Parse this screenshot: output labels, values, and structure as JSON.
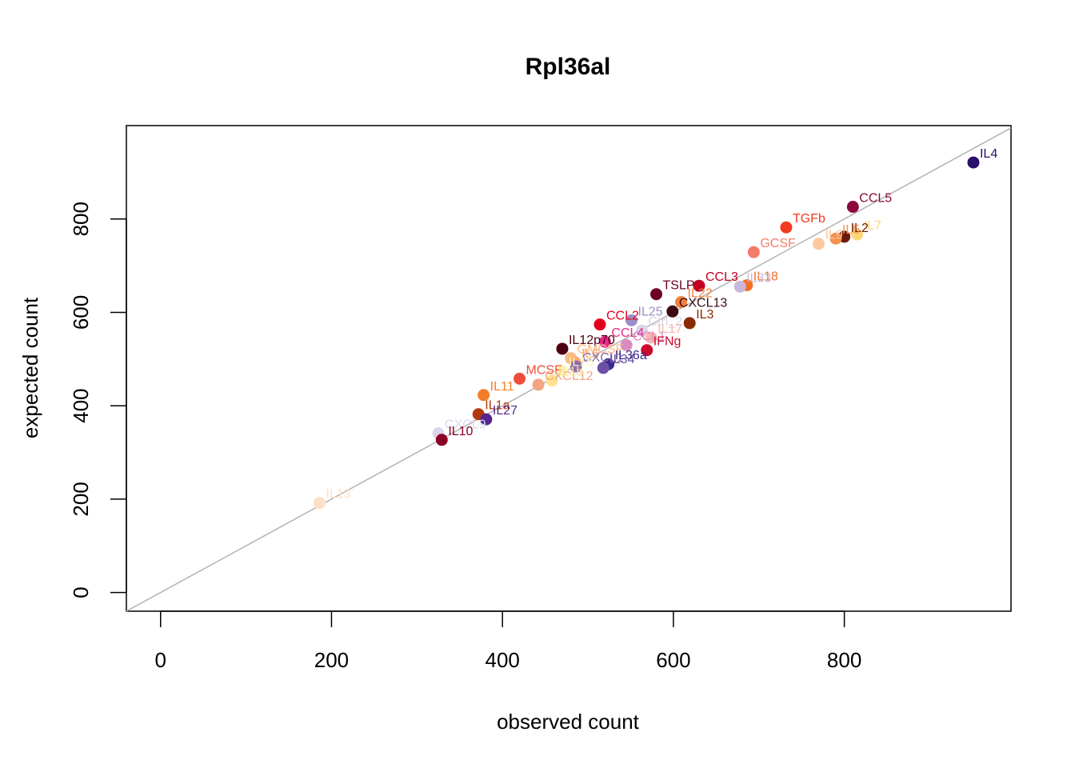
{
  "chart_data": {
    "type": "scatter",
    "title": "Rpl36al",
    "xlabel": "observed count",
    "ylabel": "expected count",
    "xlim": [
      -40,
      995
    ],
    "ylim": [
      -40,
      1000
    ],
    "x_ticks": [
      0,
      200,
      400,
      600,
      800
    ],
    "y_ticks": [
      0,
      200,
      400,
      600,
      800
    ],
    "reference_line": "y = x",
    "reference_line_color": "#b3b3b3",
    "grid": false,
    "legend": "none",
    "points": [
      {
        "label": "IL4",
        "x": 951,
        "y": 921,
        "color": "#2a0f6b"
      },
      {
        "label": "CCL5",
        "x": 810,
        "y": 826,
        "color": "#8b0a3d"
      },
      {
        "label": "IL7",
        "x": 815,
        "y": 767,
        "color": "#fdd87a"
      },
      {
        "label": "IL2",
        "x": 800,
        "y": 762,
        "color": "#6b1a0a"
      },
      {
        "label": "IL5",
        "x": 790,
        "y": 758,
        "color": "#f3914f"
      },
      {
        "label": "IL9",
        "x": 770,
        "y": 747,
        "color": "#fcc89e"
      },
      {
        "label": "TGFb",
        "x": 732,
        "y": 782,
        "color": "#f03b20"
      },
      {
        "label": "GCSF",
        "x": 694,
        "y": 729,
        "color": "#f47c6a"
      },
      {
        "label": "IL18",
        "x": 686,
        "y": 658,
        "color": "#f46f24"
      },
      {
        "label": "IL33",
        "x": 678,
        "y": 655,
        "color": "#c9b7dc"
      },
      {
        "label": "CCL3",
        "x": 630,
        "y": 657,
        "color": "#c0001e"
      },
      {
        "label": "TSLP",
        "x": 580,
        "y": 639,
        "color": "#6a0025"
      },
      {
        "label": "IL22",
        "x": 609,
        "y": 622,
        "color": "#f3813a"
      },
      {
        "label": "CXCL13",
        "x": 599,
        "y": 602,
        "color": "#3c0a14"
      },
      {
        "label": "IL3",
        "x": 619,
        "y": 577,
        "color": "#8a2a05"
      },
      {
        "label": "IL25",
        "x": 551,
        "y": 583,
        "color": "#9c8ec5"
      },
      {
        "label": "Ctrl_2",
        "x": 563,
        "y": 561,
        "color": "#dcd4ea"
      },
      {
        "label": "IL17",
        "x": 574,
        "y": 546,
        "color": "#f8b6b0"
      },
      {
        "label": "CCL2",
        "x": 514,
        "y": 574,
        "color": "#e4001c"
      },
      {
        "label": "CCL4",
        "x": 520,
        "y": 537,
        "color": "#e7298a"
      },
      {
        "label": "CCL1",
        "x": 545,
        "y": 530,
        "color": "#d98cc0"
      },
      {
        "label": "IFNg",
        "x": 569,
        "y": 519,
        "color": "#cc0a2c"
      },
      {
        "label": "IL12p70",
        "x": 470,
        "y": 522,
        "color": "#4f0010"
      },
      {
        "label": "GMCSF",
        "x": 480,
        "y": 502,
        "color": "#fdbb84"
      },
      {
        "label": "IL6",
        "x": 485,
        "y": 493,
        "color": "#fca96a"
      },
      {
        "label": "CXCL1",
        "x": 486,
        "y": 484,
        "color": "#8c6bb1"
      },
      {
        "label": "IL36a",
        "x": 524,
        "y": 489,
        "color": "#3a2a8c"
      },
      {
        "label": "IL34",
        "x": 518,
        "y": 481,
        "color": "#6a51a3"
      },
      {
        "label": "MCSF",
        "x": 420,
        "y": 458,
        "color": "#ef4f3a"
      },
      {
        "label": "CXCL12",
        "x": 442,
        "y": 445,
        "color": "#f4a582"
      },
      {
        "label": "IL1b",
        "x": 458,
        "y": 454,
        "color": "#fee391"
      },
      {
        "label": "IL15",
        "x": 470,
        "y": 475,
        "color": "#fff7bc"
      },
      {
        "label": "IL11",
        "x": 378,
        "y": 423,
        "color": "#f57d2a"
      },
      {
        "label": "IL1a",
        "x": 372,
        "y": 382,
        "color": "#b3380a"
      },
      {
        "label": "IL27",
        "x": 381,
        "y": 371,
        "color": "#54278f"
      },
      {
        "label": "CXCL9",
        "x": 325,
        "y": 341,
        "color": "#ddd6ea"
      },
      {
        "label": "IL10",
        "x": 329,
        "y": 327,
        "color": "#8b0026"
      },
      {
        "label": "IL13",
        "x": 186,
        "y": 192,
        "color": "#fde0c5"
      }
    ]
  }
}
